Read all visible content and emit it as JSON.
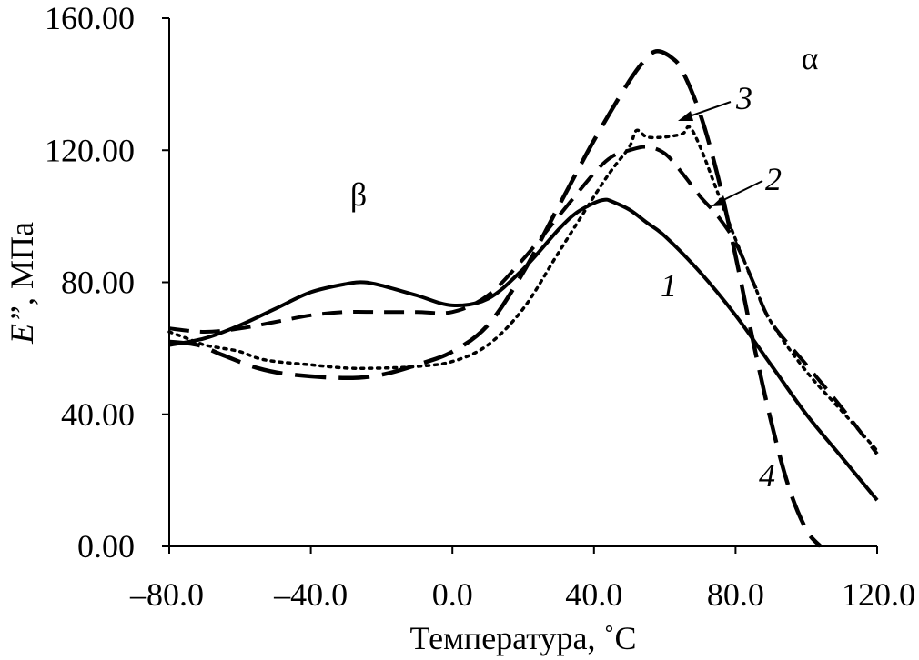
{
  "chart_data": {
    "type": "line",
    "xlabel": "Температура, ˚C",
    "ylabel_italic": "E”",
    "ylabel_rest": ", МПа",
    "xlim": [
      -80,
      120
    ],
    "ylim": [
      0,
      160
    ],
    "x_ticks": [
      -80,
      -40,
      0,
      40,
      80,
      120
    ],
    "x_tick_labels": [
      "–80.0",
      "–40.0",
      "0.0",
      "40.0",
      "80.0",
      "120.0"
    ],
    "y_ticks": [
      0,
      40,
      80,
      120,
      160
    ],
    "y_tick_labels": [
      "0.00",
      "40.00",
      "80.00",
      "120.00",
      "160.00"
    ],
    "grid": false,
    "legend": "none",
    "series": [
      {
        "name": "1",
        "style": "solid",
        "x": [
          -80,
          -70,
          -60,
          -50,
          -40,
          -30,
          -25,
          -20,
          -10,
          0,
          10,
          20,
          30,
          35,
          40,
          43,
          45,
          50,
          55,
          60,
          70,
          80,
          90,
          100,
          110,
          120
        ],
        "y": [
          61,
          63,
          67,
          72,
          77,
          79.5,
          80,
          79,
          76,
          73,
          75,
          84,
          96,
          101,
          104,
          105,
          104.5,
          102,
          98,
          94,
          83,
          70,
          55,
          40,
          27,
          14
        ]
      },
      {
        "name": "2",
        "style": "dash",
        "x": [
          -80,
          -70,
          -60,
          -50,
          -40,
          -30,
          -20,
          -10,
          0,
          10,
          20,
          30,
          40,
          45,
          50,
          55,
          60,
          65,
          70,
          75,
          80,
          85,
          90,
          100,
          110,
          120
        ],
        "y": [
          66,
          65,
          66,
          68,
          70,
          71,
          71,
          71,
          71,
          76,
          87,
          100,
          113,
          118,
          120,
          121,
          119,
          113,
          106,
          100,
          92,
          80,
          68,
          55,
          42,
          28
        ]
      },
      {
        "name": "3",
        "style": "dot",
        "x": [
          -80,
          -75,
          -70,
          -65,
          -60,
          -55,
          -50,
          -40,
          -30,
          -20,
          -10,
          0,
          10,
          20,
          30,
          40,
          45,
          50,
          52,
          55,
          60,
          65,
          67,
          70,
          75,
          80,
          85,
          90,
          100,
          110,
          120
        ],
        "y": [
          65,
          63,
          61,
          60,
          59,
          57,
          56,
          55,
          54,
          54,
          54.5,
          56,
          61,
          72,
          89,
          106,
          114,
          121,
          126,
          124,
          124,
          125,
          127,
          121,
          107,
          93,
          80,
          68,
          53,
          41,
          29
        ]
      },
      {
        "name": "4",
        "style": "longdash",
        "x": [
          -80,
          -72,
          -65,
          -55,
          -45,
          -30,
          -20,
          -10,
          0,
          10,
          20,
          30,
          40,
          50,
          55,
          58,
          62,
          65,
          70,
          75,
          80,
          85,
          90,
          95,
          100,
          104
        ],
        "y": [
          62,
          61,
          58,
          54,
          52,
          51,
          52,
          55,
          59,
          67,
          83,
          103,
          123,
          141,
          148,
          150,
          148,
          144,
          131,
          112,
          88,
          62,
          38,
          18,
          5,
          0
        ]
      }
    ],
    "annotations": {
      "alpha": "α",
      "beta": "β",
      "label1": "1",
      "label2": "2",
      "label3": "3",
      "label4": "4"
    }
  }
}
